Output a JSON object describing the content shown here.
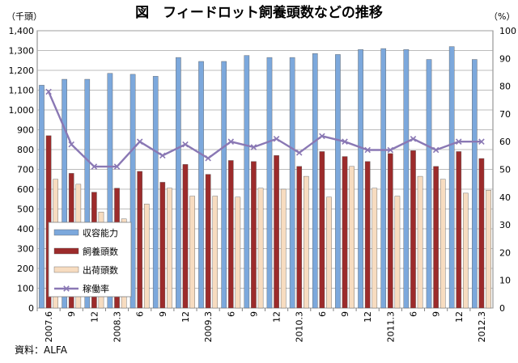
{
  "chart_data": {
    "type": "bar",
    "title": "図　フィードロット飼養頭数などの推移",
    "left_unit": "（千頭）",
    "right_unit": "（%）",
    "source": "資料：ALFA",
    "categories": [
      "2007.6",
      "9",
      "12",
      "2008.3",
      "6",
      "9",
      "12",
      "2009.3",
      "6",
      "9",
      "12",
      "2010.3",
      "6",
      "9",
      "12",
      "2011.3",
      "6",
      "9",
      "12",
      "2012.3"
    ],
    "ylim_left": [
      0,
      1400
    ],
    "y_ticks_left": [
      "0",
      "100",
      "200",
      "300",
      "400",
      "500",
      "600",
      "700",
      "800",
      "900",
      "1,000",
      "1,100",
      "1,200",
      "1,300",
      "1,400"
    ],
    "ylim_right": [
      0,
      100
    ],
    "y_ticks_right": [
      "0",
      "10",
      "20",
      "30",
      "40",
      "50",
      "60",
      "70",
      "80",
      "90",
      "100"
    ],
    "grid": true,
    "legend_placement": "lower-left inside",
    "series": [
      {
        "name": "収容能力",
        "kind": "bar",
        "axis": "left",
        "color": "#7ca8dc",
        "values": [
          1125,
          1155,
          1155,
          1185,
          1180,
          1170,
          1265,
          1245,
          1245,
          1275,
          1265,
          1265,
          1285,
          1280,
          1305,
          1310,
          1305,
          1255,
          1320,
          1255
        ]
      },
      {
        "name": "飼養頭数",
        "kind": "bar",
        "axis": "left",
        "color": "#9c2b2b",
        "values": [
          870,
          680,
          585,
          605,
          690,
          635,
          725,
          675,
          745,
          740,
          770,
          715,
          790,
          765,
          740,
          780,
          795,
          715,
          790,
          755
        ]
      },
      {
        "name": "出荷頭数",
        "kind": "bar",
        "axis": "left",
        "color": "#f7dcc0",
        "values": [
          650,
          625,
          485,
          450,
          525,
          605,
          565,
          565,
          560,
          605,
          600,
          665,
          560,
          715,
          605,
          565,
          665,
          650,
          580,
          595
        ]
      },
      {
        "name": "稼働率",
        "kind": "line",
        "axis": "right",
        "color": "#8a78b4",
        "values": [
          78,
          59,
          51,
          51,
          60,
          55,
          59,
          54,
          60,
          58,
          61,
          56,
          62,
          60,
          57,
          57,
          61,
          57,
          60,
          60
        ]
      }
    ]
  }
}
